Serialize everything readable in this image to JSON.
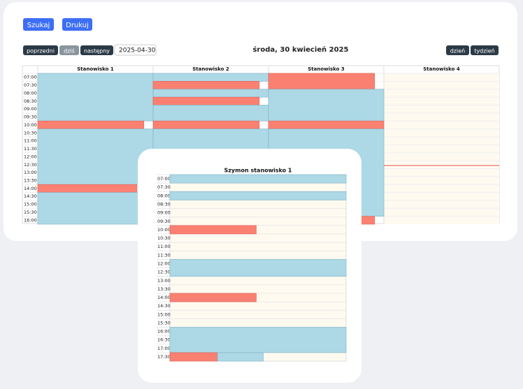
{
  "buttons": {
    "search": "Szukaj",
    "print": "Drukuj"
  },
  "nav": {
    "prev": "poprzedni",
    "today": "dziś",
    "next": "następny"
  },
  "date_input": "2025-04-30",
  "heading": "środa, 30 kwiecień 2025",
  "view": {
    "day": "dzień",
    "week": "tydzień"
  },
  "main": {
    "columns": [
      "Stanowisko 1",
      "Stanowisko 2",
      "Stanowisko 3",
      "Stanowisko 4"
    ],
    "times": [
      "07:00",
      "07:30",
      "08:00",
      "08:30",
      "09:00",
      "09:30",
      "10:00",
      "10:30",
      "11:00",
      "11:30",
      "12:00",
      "12:30",
      "13:00",
      "13:30",
      "14:00",
      "14:30",
      "15:00",
      "15:30",
      "16:00"
    ]
  },
  "popup": {
    "title": "Szymon stanowisko 1",
    "times": [
      "07:00",
      "07:30",
      "08:00",
      "08:30",
      "09:00",
      "09:30",
      "10:00",
      "10:30",
      "11:00",
      "11:30",
      "12:00",
      "12:30",
      "13:00",
      "13:30",
      "14:00",
      "14:30",
      "15:00",
      "15:30",
      "16:00",
      "16:30",
      "17:00",
      "17:30"
    ]
  }
}
